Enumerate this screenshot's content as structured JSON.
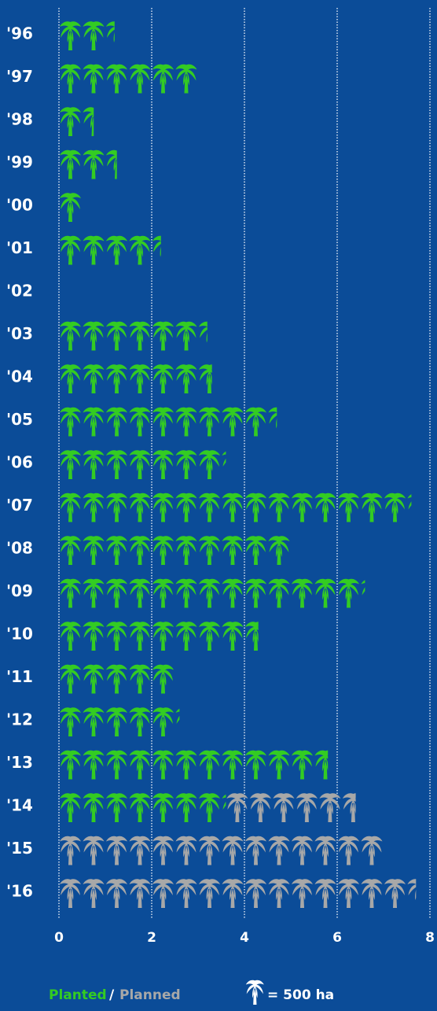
{
  "chart_data": {
    "type": "pictogram-bar",
    "categories": [
      "'96",
      "'97",
      "'98",
      "'99",
      "'00",
      "'01",
      "'02",
      "'03",
      "'04",
      "'05",
      "'06",
      "'07",
      "'08",
      "'09",
      "'10",
      "'11",
      "'12",
      "'13",
      "'14",
      "'15",
      "'16"
    ],
    "series": [
      {
        "name": "Planted",
        "color": "#33cc22",
        "values": [
          1.2,
          3.0,
          0.75,
          1.25,
          0.5,
          2.2,
          0,
          3.2,
          3.3,
          4.7,
          3.6,
          7.6,
          5.0,
          6.6,
          4.3,
          2.5,
          2.6,
          5.8,
          3.6,
          0,
          0
        ]
      },
      {
        "name": "Planned",
        "color": "#a8a8a8",
        "values": [
          0,
          0,
          0,
          0,
          0,
          0,
          0,
          0,
          0,
          0,
          0,
          0,
          0,
          0,
          0,
          0,
          0,
          0,
          2.8,
          7.0,
          7.7
        ]
      }
    ],
    "stacked": true,
    "xlim": [
      0,
      8
    ],
    "xticks": [
      0,
      2,
      4,
      6,
      8
    ],
    "grid": true,
    "legend_separator": "/",
    "legend_note": "= 500 ha"
  }
}
